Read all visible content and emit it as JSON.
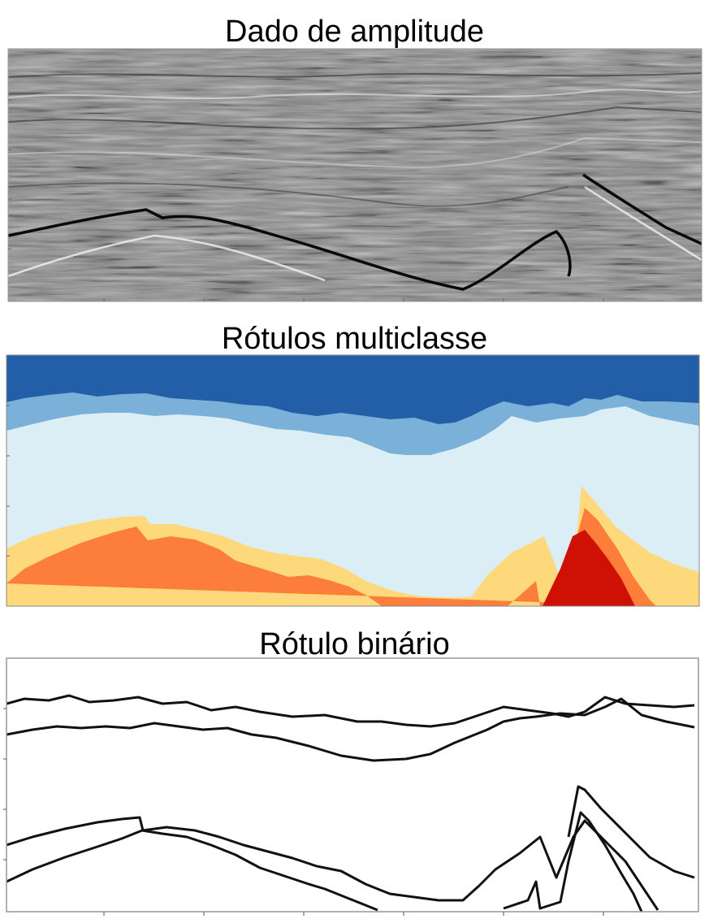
{
  "panels": [
    {
      "title": "Dado de amplitude",
      "kind": "seismic-amplitude"
    },
    {
      "title": "Rótulos multiclasse",
      "kind": "multiclass-labels",
      "class_colors": [
        "#235ea8",
        "#7bb1d8",
        "#dbeef6",
        "#fed97c",
        "#fc7e3a",
        "#cf1004"
      ]
    },
    {
      "title": "Rótulo binário",
      "kind": "binary-boundaries",
      "line_color": "#111111"
    }
  ]
}
